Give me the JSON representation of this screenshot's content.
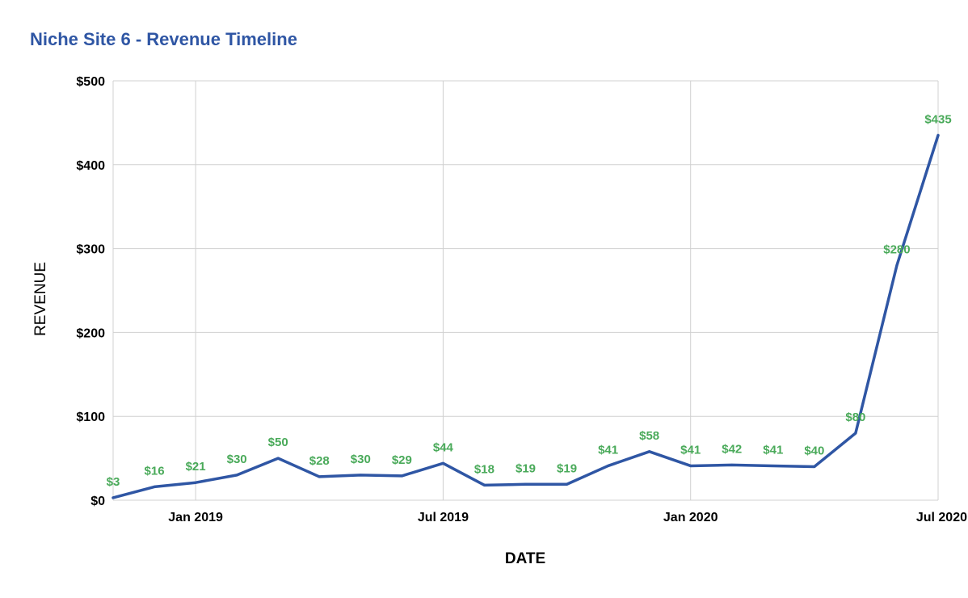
{
  "chart_data": {
    "type": "line",
    "title": "Niche Site 6 - Revenue Timeline",
    "xlabel": "DATE",
    "ylabel": "REVENUE",
    "ylim": [
      0,
      500
    ],
    "yticks": [
      0,
      100,
      200,
      300,
      400,
      500
    ],
    "ytick_labels": [
      "$0",
      "$100",
      "$200",
      "$300",
      "$400",
      "$500"
    ],
    "xlim_month_index": [
      -2,
      18
    ],
    "xticks": [
      {
        "label": "Jan 2019",
        "month_index": 0
      },
      {
        "label": "Jul 2019",
        "month_index": 6
      },
      {
        "label": "Jan 2020",
        "month_index": 12
      },
      {
        "label": "Jul 2020",
        "month_index": 18
      }
    ],
    "x_month_index": [
      -2,
      -1,
      0,
      1,
      2,
      3,
      4,
      5,
      6,
      7,
      8,
      9,
      10,
      11,
      12,
      13,
      14,
      15,
      16,
      17,
      18
    ],
    "values": [
      3,
      16,
      21,
      30,
      50,
      28,
      30,
      29,
      44,
      18,
      19,
      19,
      41,
      58,
      41,
      42,
      41,
      40,
      80,
      280,
      435
    ],
    "data_labels": [
      "$3",
      "$16",
      "$21",
      "$30",
      "$50",
      "$28",
      "$30",
      "$29",
      "$44",
      "$18",
      "$19",
      "$19",
      "$41",
      "$58",
      "$41",
      "$42",
      "$41",
      "$40",
      "$80",
      "$280",
      "$435"
    ],
    "series_color": "#2f56a4",
    "label_color": "#4aaa5a",
    "grid": true,
    "legend": "none"
  }
}
